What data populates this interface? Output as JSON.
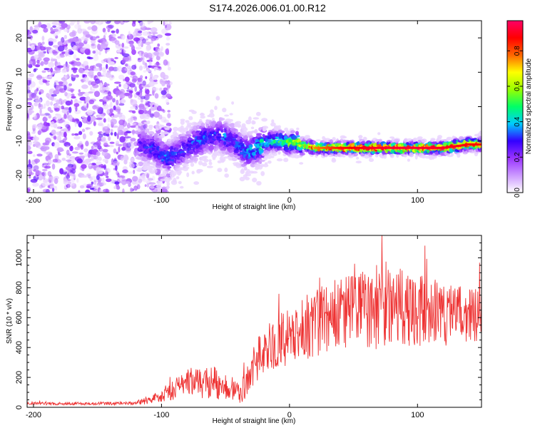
{
  "chart_data": [
    {
      "type": "heatmap",
      "title": "S174.2026.006.01.00.R12",
      "xlabel": "Height of straight line (km)",
      "ylabel": "Frequency (Hz)",
      "xlim": [
        -205,
        150
      ],
      "ylim": [
        -25,
        25
      ],
      "xticks": [
        -200,
        -100,
        0,
        100
      ],
      "yticks": [
        20,
        10,
        0,
        -10,
        -20
      ],
      "colorbar": {
        "label": "Normalized spectral amplitude",
        "range": [
          0,
          0.97
        ],
        "ticks": [
          0.0,
          0.2,
          0.4,
          0.6,
          0.8
        ],
        "tick_labels": [
          "0.0",
          "0.2",
          "0.4",
          "0.6",
          "0.8"
        ],
        "colors": [
          "#ffffff",
          "#cc99ff",
          "#9933ff",
          "#3300ff",
          "#00ccff",
          "#00ff66",
          "#99ff00",
          "#ffff00",
          "#ff6600",
          "#ff0000",
          "#ff0066"
        ]
      },
      "ridge": {
        "x": [
          -115,
          -110,
          -105,
          -100,
          -95,
          -90,
          -85,
          -80,
          -75,
          -70,
          -65,
          -60,
          -55,
          -50,
          -45,
          -40,
          -35,
          -30,
          -25,
          -20,
          -15,
          -10,
          -5,
          0,
          5,
          10,
          20,
          40,
          60,
          80,
          100,
          120,
          140,
          150
        ],
        "y": [
          -11,
          -12,
          -12,
          -14,
          -15,
          -14,
          -13,
          -12,
          -11,
          -10,
          -9,
          -9,
          -8,
          -9,
          -10,
          -11,
          -13,
          -13,
          -12,
          -11,
          -10,
          -10,
          -10,
          -11,
          -10,
          -11,
          -12,
          -12,
          -12,
          -12,
          -12,
          -12,
          -11,
          -11
        ],
        "amplitude": [
          0.25,
          0.3,
          0.3,
          0.3,
          0.35,
          0.3,
          0.3,
          0.3,
          0.3,
          0.35,
          0.3,
          0.3,
          0.3,
          0.35,
          0.3,
          0.3,
          0.35,
          0.4,
          0.4,
          0.45,
          0.45,
          0.5,
          0.5,
          0.55,
          0.55,
          0.65,
          0.75,
          0.85,
          0.9,
          0.92,
          0.92,
          0.9,
          0.88,
          0.85
        ]
      }
    },
    {
      "type": "line",
      "xlabel": "Height of straight line (km)",
      "ylabel": "SNR (10 * v/v)",
      "xlim": [
        -205,
        150
      ],
      "ylim": [
        0,
        1150
      ],
      "xticks": [
        -200,
        -100,
        0,
        100
      ],
      "yticks": [
        0,
        200,
        400,
        600,
        800,
        1000
      ],
      "color": "#ee3333",
      "series": [
        {
          "name": "SNR",
          "x": [
            -205,
            -180,
            -150,
            -120,
            -110,
            -100,
            -90,
            -80,
            -70,
            -60,
            -50,
            -40,
            -35,
            -30,
            -25,
            -20,
            -10,
            0,
            10,
            20,
            30,
            40,
            50,
            60,
            70,
            80,
            90,
            100,
            110,
            120,
            130,
            140,
            150
          ],
          "values": [
            25,
            25,
            25,
            28,
            50,
            80,
            120,
            150,
            160,
            170,
            140,
            110,
            120,
            250,
            320,
            380,
            430,
            470,
            520,
            570,
            600,
            620,
            640,
            650,
            680,
            700,
            670,
            650,
            640,
            630,
            620,
            620,
            620
          ],
          "spread": [
            10,
            10,
            10,
            12,
            30,
            45,
            70,
            90,
            100,
            110,
            90,
            80,
            90,
            120,
            140,
            160,
            180,
            200,
            220,
            230,
            240,
            250,
            260,
            270,
            290,
            280,
            260,
            240,
            230,
            220,
            200,
            190,
            180
          ]
        }
      ]
    }
  ]
}
